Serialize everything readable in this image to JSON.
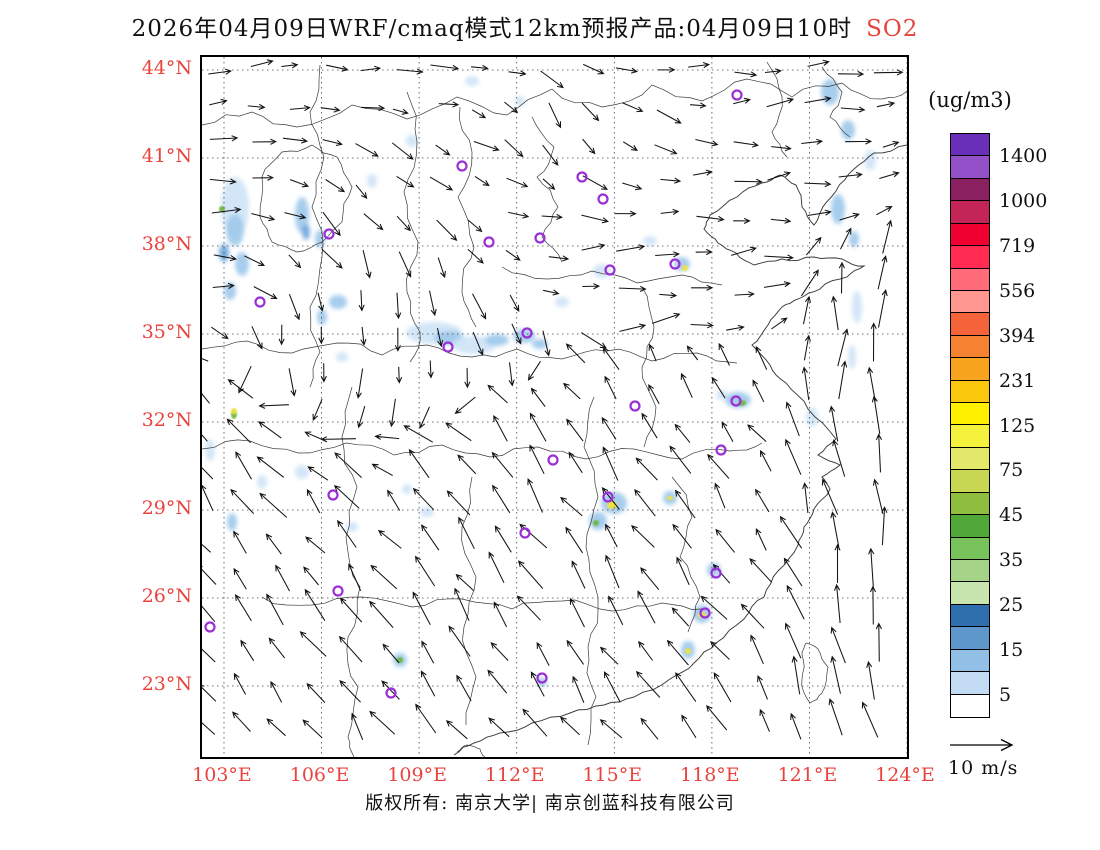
{
  "title": {
    "main": "2026年04月09日WRF/cmaq模式12km预报产品:04月09日10时",
    "species": "SO2"
  },
  "unit_label": "(ug/m3)",
  "wind_legend": {
    "label": "10 m/s"
  },
  "footer": {
    "copyright": "版权所有: 南京大学| 南京创蓝科技有限公司"
  },
  "colors": {
    "accent_red": "#e8433e",
    "map_line": "#3a3a3a",
    "grid": "#444444",
    "marker": "#9b2fd6",
    "patch": {
      "b1": "#cfe4f6",
      "b2": "#9fc9ec",
      "b3": "#6fa6dc",
      "y": "#f2e33a",
      "g": "#6db53c",
      "o": "#efa03a"
    }
  },
  "axes": {
    "lat_labels": [
      "44°N",
      "41°N",
      "38°N",
      "35°N",
      "32°N",
      "29°N",
      "26°N",
      "23°N"
    ],
    "lon_labels": [
      "103°E",
      "106°E",
      "109°E",
      "112°E",
      "115°E",
      "118°E",
      "121°E",
      "124°E"
    ]
  },
  "colorbar": {
    "bands": [
      {
        "c": "#6a2fb8",
        "l": "1400"
      },
      {
        "c": "#9450c8"
      },
      {
        "c": "#8b2060",
        "l": "1000"
      },
      {
        "c": "#c42557"
      },
      {
        "c": "#f00030",
        "l": "719"
      },
      {
        "c": "#ff2b50"
      },
      {
        "c": "#ff6b78",
        "l": "556"
      },
      {
        "c": "#ff9690"
      },
      {
        "c": "#f4633a",
        "l": "394"
      },
      {
        "c": "#f58231"
      },
      {
        "c": "#f8a41f",
        "l": "231"
      },
      {
        "c": "#fbc80d"
      },
      {
        "c": "#fff000",
        "l": "125"
      },
      {
        "c": "#f4f23c"
      },
      {
        "c": "#e4e86a",
        "l": "75"
      },
      {
        "c": "#c8d855"
      },
      {
        "c": "#8fbe3f",
        "l": "45"
      },
      {
        "c": "#4fa838"
      },
      {
        "c": "#79c35c",
        "l": "35"
      },
      {
        "c": "#a5d488"
      },
      {
        "c": "#c8e5ae",
        "l": "25"
      },
      {
        "c": "#2f6fae"
      },
      {
        "c": "#5e97cc",
        "l": "15"
      },
      {
        "c": "#92bfe6"
      },
      {
        "c": "#c3dcf3",
        "l": "5"
      },
      {
        "c": "#ffffff"
      }
    ]
  },
  "map": {
    "wind_field": {
      "cols": 19,
      "rows": 19,
      "spacing": 37
    },
    "markers": [
      [
        535,
        38
      ],
      [
        380,
        120
      ],
      [
        401,
        142
      ],
      [
        260,
        109
      ],
      [
        127,
        177
      ],
      [
        287,
        185
      ],
      [
        338,
        181
      ],
      [
        408,
        213
      ],
      [
        473,
        207
      ],
      [
        58,
        245
      ],
      [
        325,
        276
      ],
      [
        246,
        290
      ],
      [
        433,
        349
      ],
      [
        534,
        344
      ],
      [
        351,
        403
      ],
      [
        519,
        393
      ],
      [
        131,
        438
      ],
      [
        406,
        440
      ],
      [
        323,
        476
      ],
      [
        514,
        516
      ],
      [
        503,
        556
      ],
      [
        136,
        534
      ],
      [
        8,
        570
      ],
      [
        340,
        621
      ],
      [
        189,
        636
      ]
    ],
    "patches": [
      [
        33,
        150,
        14,
        30,
        "b1"
      ],
      [
        33,
        173,
        9,
        16,
        "b2"
      ],
      [
        40,
        207,
        7,
        12,
        "b2"
      ],
      [
        28,
        234,
        6,
        9,
        "b2"
      ],
      [
        22,
        196,
        5,
        9,
        "b3"
      ],
      [
        100,
        158,
        7,
        18,
        "b2"
      ],
      [
        118,
        182,
        5,
        9,
        "b2"
      ],
      [
        104,
        175,
        4,
        8,
        "b3"
      ],
      [
        136,
        245,
        9,
        7,
        "b2"
      ],
      [
        20,
        152,
        3,
        3,
        "g"
      ],
      [
        120,
        260,
        5,
        8,
        "b2"
      ],
      [
        140,
        300,
        6,
        5,
        "b1"
      ],
      [
        232,
        276,
        28,
        11,
        "b1"
      ],
      [
        247,
        281,
        15,
        7,
        "b2"
      ],
      [
        272,
        288,
        22,
        9,
        "b1"
      ],
      [
        295,
        283,
        12,
        6,
        "b2"
      ],
      [
        322,
        279,
        11,
        7,
        "b2"
      ],
      [
        338,
        287,
        8,
        5,
        "b2"
      ],
      [
        360,
        245,
        7,
        5,
        "b1"
      ],
      [
        400,
        214,
        9,
        7,
        "b1"
      ],
      [
        448,
        184,
        7,
        5,
        "b1"
      ],
      [
        480,
        207,
        8,
        7,
        "b2"
      ],
      [
        483,
        211,
        3,
        3,
        "y"
      ],
      [
        628,
        35,
        9,
        13,
        "b2"
      ],
      [
        646,
        73,
        7,
        10,
        "b2"
      ],
      [
        668,
        103,
        6,
        10,
        "b1"
      ],
      [
        636,
        152,
        7,
        15,
        "b2"
      ],
      [
        652,
        182,
        5,
        8,
        "b2"
      ],
      [
        655,
        250,
        5,
        16,
        "b1"
      ],
      [
        650,
        300,
        4,
        12,
        "b1"
      ],
      [
        270,
        24,
        7,
        5,
        "b1"
      ],
      [
        318,
        44,
        5,
        5,
        "b1"
      ],
      [
        210,
        84,
        6,
        6,
        "b1"
      ],
      [
        170,
        124,
        5,
        7,
        "b1"
      ],
      [
        536,
        343,
        13,
        8,
        "b2"
      ],
      [
        540,
        346,
        4,
        3,
        "g"
      ],
      [
        520,
        338,
        6,
        5,
        "b1"
      ],
      [
        610,
        360,
        6,
        10,
        "b1"
      ],
      [
        412,
        446,
        13,
        11,
        "b2"
      ],
      [
        410,
        448,
        5,
        4,
        "y"
      ],
      [
        396,
        464,
        9,
        9,
        "b2"
      ],
      [
        394,
        466,
        3,
        3,
        "g"
      ],
      [
        468,
        441,
        7,
        7,
        "b2"
      ],
      [
        468,
        441,
        3,
        2,
        "y"
      ],
      [
        512,
        513,
        7,
        7,
        "b2"
      ],
      [
        500,
        557,
        9,
        9,
        "b2"
      ],
      [
        500,
        558,
        4,
        3,
        "y"
      ],
      [
        486,
        593,
        7,
        9,
        "b2"
      ],
      [
        486,
        594,
        3,
        3,
        "y"
      ],
      [
        32,
        357,
        3,
        5,
        "g"
      ],
      [
        32,
        354,
        3,
        3,
        "y"
      ],
      [
        198,
        603,
        7,
        7,
        "b2"
      ],
      [
        198,
        603,
        3,
        3,
        "g"
      ],
      [
        340,
        625,
        5,
        5,
        "b2"
      ],
      [
        30,
        465,
        5,
        9,
        "b2"
      ],
      [
        60,
        425,
        5,
        7,
        "b1"
      ],
      [
        100,
        415,
        7,
        7,
        "b1"
      ],
      [
        8,
        393,
        5,
        11,
        "b1"
      ],
      [
        225,
        455,
        7,
        5,
        "b1"
      ],
      [
        205,
        432,
        5,
        5,
        "b1"
      ],
      [
        150,
        470,
        6,
        5,
        "b1"
      ]
    ],
    "boundaries": [
      [
        [
          705,
          88
        ],
        [
          672,
          96
        ],
        [
          652,
          112
        ],
        [
          634,
          134
        ],
        [
          618,
          156
        ],
        [
          612,
          168
        ],
        [
          600,
          150
        ],
        [
          594,
          128
        ],
        [
          578,
          118
        ],
        [
          560,
          126
        ],
        [
          535,
          140
        ],
        [
          508,
          158
        ],
        [
          502,
          172
        ],
        [
          516,
          186
        ],
        [
          534,
          196
        ],
        [
          552,
          208
        ],
        [
          580,
          202
        ],
        [
          612,
          200
        ],
        [
          640,
          202
        ],
        [
          662,
          209
        ],
        [
          645,
          220
        ],
        [
          618,
          232
        ],
        [
          596,
          242
        ],
        [
          580,
          250
        ],
        [
          566,
          268
        ],
        [
          550,
          288
        ],
        [
          568,
          308
        ],
        [
          584,
          326
        ],
        [
          606,
          352
        ],
        [
          634,
          382
        ],
        [
          616,
          398
        ],
        [
          638,
          408
        ],
        [
          620,
          420
        ],
        [
          628,
          432
        ],
        [
          612,
          452
        ],
        [
          602,
          470
        ],
        [
          596,
          488
        ],
        [
          576,
          514
        ],
        [
          562,
          540
        ],
        [
          542,
          562
        ],
        [
          514,
          586
        ],
        [
          492,
          606
        ],
        [
          468,
          622
        ],
        [
          432,
          640
        ],
        [
          402,
          648
        ],
        [
          368,
          656
        ],
        [
          330,
          666
        ],
        [
          298,
          676
        ],
        [
          272,
          686
        ],
        [
          252,
          698
        ]
      ],
      [
        [
          0,
          68
        ],
        [
          50,
          55
        ],
        [
          95,
          70
        ],
        [
          150,
          48
        ],
        [
          205,
          62
        ],
        [
          255,
          40
        ],
        [
          305,
          58
        ],
        [
          350,
          32
        ],
        [
          400,
          50
        ],
        [
          450,
          28
        ],
        [
          500,
          44
        ],
        [
          545,
          22
        ],
        [
          590,
          40
        ],
        [
          640,
          26
        ],
        [
          680,
          42
        ],
        [
          705,
          34
        ]
      ],
      [
        [
          118,
          8
        ],
        [
          108,
          55
        ],
        [
          122,
          100
        ],
        [
          110,
          150
        ],
        [
          120,
          200
        ],
        [
          108,
          250
        ],
        [
          118,
          295
        ],
        [
          108,
          330
        ]
      ],
      [
        [
          205,
          35
        ],
        [
          215,
          85
        ],
        [
          202,
          135
        ],
        [
          216,
          185
        ],
        [
          205,
          235
        ],
        [
          218,
          275
        ],
        [
          208,
          305
        ]
      ],
      [
        [
          258,
          50
        ],
        [
          270,
          95
        ],
        [
          256,
          140
        ],
        [
          272,
          190
        ],
        [
          260,
          235
        ],
        [
          274,
          270
        ]
      ],
      [
        [
          330,
          60
        ],
        [
          352,
          90
        ],
        [
          335,
          120
        ],
        [
          356,
          150
        ],
        [
          340,
          180
        ],
        [
          360,
          205
        ]
      ],
      [
        [
          300,
          210
        ],
        [
          345,
          222
        ],
        [
          390,
          214
        ],
        [
          435,
          226
        ],
        [
          480,
          218
        ],
        [
          520,
          228
        ]
      ],
      [
        [
          0,
          292
        ],
        [
          45,
          284
        ],
        [
          90,
          296
        ],
        [
          135,
          286
        ],
        [
          180,
          298
        ],
        [
          225,
          288
        ],
        [
          270,
          300
        ],
        [
          315,
          292
        ],
        [
          360,
          302
        ],
        [
          405,
          294
        ],
        [
          450,
          304
        ],
        [
          495,
          296
        ],
        [
          535,
          306
        ]
      ],
      [
        [
          0,
          392
        ],
        [
          48,
          384
        ],
        [
          96,
          396
        ],
        [
          144,
          386
        ],
        [
          192,
          398
        ],
        [
          240,
          388
        ],
        [
          288,
          400
        ],
        [
          336,
          390
        ],
        [
          384,
          402
        ],
        [
          432,
          392
        ],
        [
          480,
          402
        ],
        [
          528,
          394
        ],
        [
          560,
          386
        ]
      ],
      [
        [
          150,
          330
        ],
        [
          140,
          380
        ],
        [
          155,
          430
        ],
        [
          144,
          480
        ],
        [
          158,
          530
        ],
        [
          146,
          580
        ],
        [
          156,
          630
        ],
        [
          146,
          680
        ],
        [
          152,
          700
        ]
      ],
      [
        [
          392,
          340
        ],
        [
          382,
          390
        ],
        [
          396,
          440
        ],
        [
          384,
          490
        ],
        [
          396,
          540
        ],
        [
          386,
          590
        ],
        [
          394,
          640
        ],
        [
          386,
          688
        ]
      ],
      [
        [
          270,
          420
        ],
        [
          260,
          470
        ],
        [
          274,
          520
        ],
        [
          262,
          570
        ],
        [
          274,
          620
        ],
        [
          264,
          668
        ]
      ],
      [
        [
          60,
          540
        ],
        [
          110,
          548
        ],
        [
          160,
          540
        ],
        [
          210,
          550
        ],
        [
          260,
          542
        ],
        [
          310,
          552
        ],
        [
          360,
          544
        ],
        [
          410,
          554
        ],
        [
          460,
          546
        ],
        [
          500,
          552
        ]
      ],
      [
        [
          470,
          420
        ],
        [
          490,
          460
        ],
        [
          478,
          500
        ],
        [
          498,
          540
        ],
        [
          486,
          575
        ]
      ],
      [
        [
          440,
          230
        ],
        [
          452,
          270
        ],
        [
          440,
          310
        ],
        [
          454,
          350
        ],
        [
          442,
          390
        ]
      ],
      [
        [
          565,
          5
        ],
        [
          580,
          40
        ],
        [
          570,
          75
        ],
        [
          585,
          100
        ]
      ],
      [
        [
          620,
          10
        ],
        [
          640,
          35
        ],
        [
          628,
          60
        ],
        [
          648,
          80
        ]
      ],
      [
        [
          60,
          120
        ],
        [
          80,
          95
        ],
        [
          110,
          88
        ],
        [
          135,
          100
        ],
        [
          150,
          130
        ],
        [
          140,
          165
        ],
        [
          120,
          185
        ],
        [
          95,
          195
        ],
        [
          70,
          185
        ],
        [
          58,
          160
        ],
        [
          60,
          120
        ]
      ],
      [
        [
          604,
          586
        ],
        [
          616,
          592
        ],
        [
          626,
          610
        ],
        [
          620,
          636
        ],
        [
          608,
          646
        ],
        [
          600,
          622
        ],
        [
          600,
          598
        ],
        [
          604,
          586
        ]
      ],
      [
        [
          255,
          695
        ],
        [
          265,
          688
        ],
        [
          278,
          692
        ],
        [
          283,
          700
        ]
      ]
    ]
  }
}
